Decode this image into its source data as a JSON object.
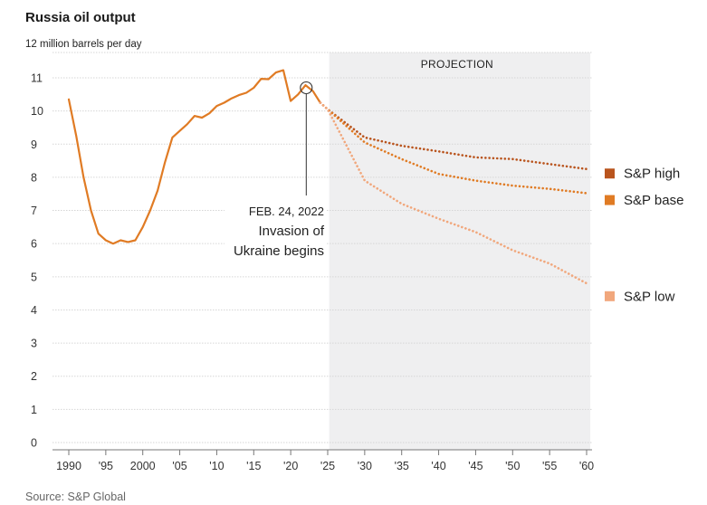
{
  "chart_data": {
    "type": "line",
    "title": "Russia oil output",
    "ylabel": "12 million barrels per day",
    "xlabel": "",
    "source": "Source: S&P Global",
    "xlim": [
      1988,
      2060.5
    ],
    "ylim": [
      0,
      12
    ],
    "y_ticks": [
      0,
      1,
      2,
      3,
      4,
      5,
      6,
      7,
      8,
      9,
      10,
      11
    ],
    "x_ticks": [
      {
        "value": 1990,
        "label": "1990"
      },
      {
        "value": 1995,
        "label": "'95"
      },
      {
        "value": 2000,
        "label": "2000"
      },
      {
        "value": 2005,
        "label": "'05"
      },
      {
        "value": 2010,
        "label": "'10"
      },
      {
        "value": 2015,
        "label": "'15"
      },
      {
        "value": 2020,
        "label": "'20"
      },
      {
        "value": 2025,
        "label": "'25"
      },
      {
        "value": 2030,
        "label": "'30"
      },
      {
        "value": 2035,
        "label": "'35"
      },
      {
        "value": 2040,
        "label": "'40"
      },
      {
        "value": 2045,
        "label": "'45"
      },
      {
        "value": 2050,
        "label": "'50"
      },
      {
        "value": 2055,
        "label": "'55"
      },
      {
        "value": 2060,
        "label": "'60"
      }
    ],
    "projection": {
      "label": "PROJECTION",
      "start": 2025.2,
      "end": 2060.5
    },
    "history": {
      "name": "Russia oil output",
      "color": "#e07b24",
      "x": [
        1990,
        1991,
        1992,
        1993,
        1994,
        1995,
        1996,
        1997,
        1998,
        1999,
        2000,
        2001,
        2002,
        2003,
        2004,
        2005,
        2006,
        2007,
        2008,
        2009,
        2010,
        2011,
        2012,
        2013,
        2014,
        2015,
        2016,
        2017,
        2018,
        2019,
        2020,
        2021,
        2022,
        2023,
        2024
      ],
      "y": [
        10.35,
        9.25,
        8.0,
        7.0,
        6.3,
        6.1,
        6.0,
        6.1,
        6.05,
        6.1,
        6.5,
        7.0,
        7.6,
        8.45,
        9.2,
        9.4,
        9.6,
        9.85,
        9.8,
        9.93,
        10.15,
        10.25,
        10.38,
        10.48,
        10.55,
        10.7,
        10.97,
        10.96,
        11.16,
        11.23,
        10.3,
        10.5,
        10.78,
        10.6,
        10.25
      ]
    },
    "series": [
      {
        "name": "S&P high",
        "color": "#b9541d",
        "x": [
          2025,
          2030,
          2035,
          2040,
          2045,
          2050,
          2055,
          2060
        ],
        "y": [
          10.05,
          9.2,
          8.95,
          8.78,
          8.6,
          8.55,
          8.4,
          8.25
        ]
      },
      {
        "name": "S&P base",
        "color": "#e07b24",
        "x": [
          2025,
          2030,
          2035,
          2040,
          2045,
          2050,
          2055,
          2060
        ],
        "y": [
          10.05,
          9.05,
          8.55,
          8.1,
          7.9,
          7.75,
          7.65,
          7.52
        ]
      },
      {
        "name": "S&P low",
        "color": "#f1a77c",
        "x": [
          2025,
          2030,
          2035,
          2040,
          2045,
          2050,
          2055,
          2060
        ],
        "y": [
          10.05,
          7.9,
          7.2,
          6.75,
          6.35,
          5.8,
          5.4,
          4.8
        ]
      }
    ],
    "annotation": {
      "x": 2022.1,
      "y": 10.7,
      "date": "FEB. 24, 2022",
      "line1": "Invasion of",
      "line2": "Ukraine begins"
    },
    "legend": [
      {
        "name": "S&P high",
        "color": "#b9541d",
        "value_at": 8.1
      },
      {
        "name": "S&P base",
        "color": "#e07b24",
        "value_at": 7.3
      },
      {
        "name": "S&P low",
        "color": "#f1a77c",
        "value_at": 4.4
      }
    ]
  }
}
